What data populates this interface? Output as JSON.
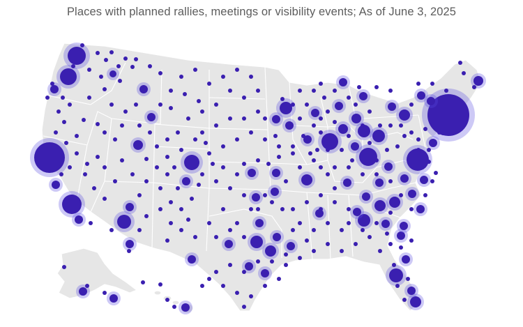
{
  "subtitle": "Places with planned rallies, meetings or visibility events; As of June 3, 2025",
  "colors": {
    "background": "#ffffff",
    "land": "#e6e6e6",
    "border": "#ffffff",
    "marker": "#3a1fb0",
    "marker_halo": "#5b4be0",
    "subtitle": "#5c5c5c"
  },
  "map": {
    "type": "proportional-symbol-map",
    "region": "United States",
    "marker_meaning": "event locations; larger circles indicate more events"
  }
}
